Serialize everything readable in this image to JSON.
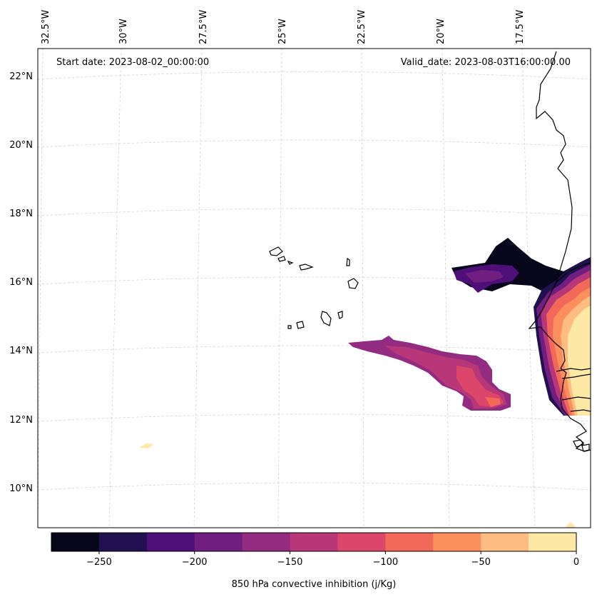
{
  "map": {
    "start_date": "Start date: 2023-08-02_00:00:00",
    "valid_date": "Valid_date: 2023-08-03T16:00:00.00",
    "lon_labels": [
      "32.5°W",
      "30°W",
      "27.5°W",
      "25°W",
      "22.5°W",
      "20°W",
      "17.5°W"
    ],
    "lat_labels": [
      "22°N",
      "20°N",
      "18°N",
      "16°N",
      "14°N",
      "12°N",
      "10°N"
    ]
  },
  "colorbar": {
    "title": "850 hPa convective inhibition (j/Kg)",
    "tick_labels": [
      "−250",
      "−200",
      "−150",
      "−100",
      "−50",
      "0"
    ],
    "levels": [
      -275,
      -250,
      -225,
      -200,
      -175,
      -150,
      -125,
      -100,
      -75,
      -50,
      -25,
      0
    ],
    "colors": [
      "#07061a",
      "#221150",
      "#4e0f78",
      "#711e81",
      "#932b80",
      "#b73779",
      "#dc466a",
      "#f26859",
      "#fb8f5e",
      "#fdbd80",
      "#fde8a5"
    ]
  },
  "chart_data": {
    "type": "map-contour",
    "title": "850 hPa convective inhibition (j/Kg)",
    "variable": "850 hPa convective inhibition",
    "units": "j/Kg",
    "lon_range": [
      -32.5,
      -15
    ],
    "lat_range": [
      9,
      22.7
    ],
    "colorbar_range": [
      -275,
      0
    ],
    "colorbar_step": 25
  }
}
